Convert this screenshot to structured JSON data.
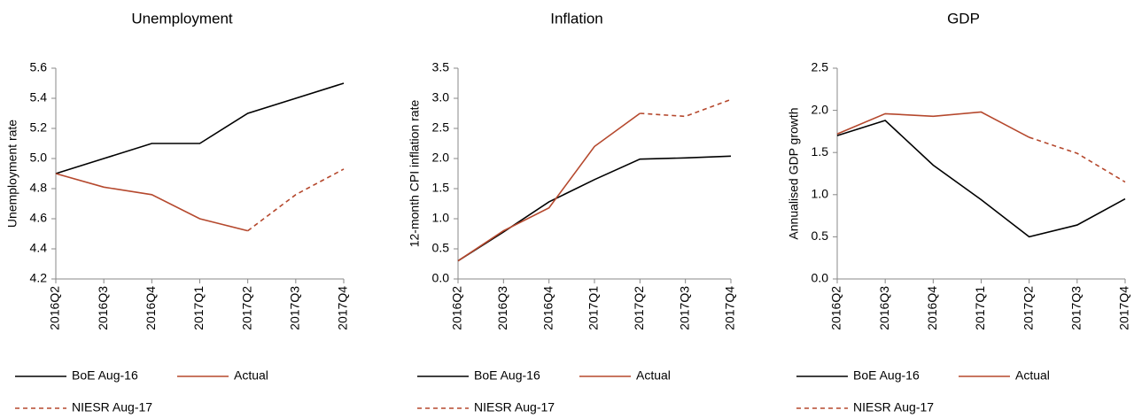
{
  "chart_data": [
    {
      "type": "line",
      "title": "Unemployment",
      "y_label": "Unemployment rate",
      "categories": [
        "2016Q2",
        "2016Q3",
        "2016Q4",
        "2017Q1",
        "2017Q2",
        "2017Q3",
        "2017Q4"
      ],
      "ylim": [
        4.2,
        5.6
      ],
      "yticks": [
        4.2,
        4.4,
        4.6,
        4.8,
        {
          "value": 5.0,
          "label": "5.0"
        },
        5.2,
        5.4,
        5.6
      ],
      "series": [
        {
          "name": "BoE Aug-16",
          "color": "#000000",
          "dashed": false,
          "values": [
            4.9,
            5.0,
            5.1,
            5.1,
            5.3,
            5.4,
            5.5
          ]
        },
        {
          "name": "Actual",
          "color": "#b5482d",
          "dashed": false,
          "values": [
            4.9,
            4.81,
            4.76,
            4.6,
            4.52,
            null,
            null
          ]
        },
        {
          "name": "NIESR Aug-17",
          "color": "#b5482d",
          "dashed": true,
          "values": [
            null,
            null,
            null,
            null,
            4.52,
            4.76,
            4.93
          ]
        }
      ]
    },
    {
      "type": "line",
      "title": "Inflation",
      "y_label": "12-month CPI inflation rate",
      "categories": [
        "2016Q2",
        "2016Q3",
        "2016Q4",
        "2017Q1",
        "2017Q2",
        "2017Q3",
        "2017Q4"
      ],
      "ylim": [
        0,
        3.5
      ],
      "yticks": [
        {
          "value": 0,
          "label": "0.0"
        },
        0.5,
        {
          "value": 1,
          "label": "1.0"
        },
        1.5,
        {
          "value": 2,
          "label": "2.0"
        },
        2.5,
        {
          "value": 3,
          "label": "3.0"
        },
        3.5
      ],
      "series": [
        {
          "name": "BoE Aug-16",
          "color": "#000000",
          "dashed": false,
          "values": [
            0.3,
            0.78,
            1.28,
            1.65,
            1.99,
            2.01,
            2.04
          ]
        },
        {
          "name": "Actual",
          "color": "#b5482d",
          "dashed": false,
          "values": [
            0.3,
            0.8,
            1.18,
            2.2,
            2.75,
            null,
            null
          ]
        },
        {
          "name": "NIESR Aug-17",
          "color": "#b5482d",
          "dashed": true,
          "values": [
            null,
            null,
            null,
            null,
            2.75,
            2.7,
            2.98
          ]
        }
      ]
    },
    {
      "type": "line",
      "title": "GDP",
      "y_label": "Annualised GDP growth",
      "categories": [
        "2016Q2",
        "2016Q3",
        "2016Q4",
        "2017Q1",
        "2017Q2",
        "2017Q3",
        "2017Q4"
      ],
      "ylim": [
        0,
        2.5
      ],
      "yticks": [
        {
          "value": 0,
          "label": "0.0"
        },
        0.5,
        {
          "value": 1,
          "label": "1.0"
        },
        1.5,
        {
          "value": 2,
          "label": "2.0"
        },
        2.5
      ],
      "series": [
        {
          "name": "BoE Aug-16",
          "color": "#000000",
          "dashed": false,
          "values": [
            1.7,
            1.88,
            1.35,
            0.94,
            0.5,
            0.64,
            0.95
          ]
        },
        {
          "name": "Actual",
          "color": "#b5482d",
          "dashed": false,
          "values": [
            1.72,
            1.96,
            1.93,
            1.98,
            1.68,
            null,
            null
          ]
        },
        {
          "name": "NIESR Aug-17",
          "color": "#b5482d",
          "dashed": true,
          "values": [
            null,
            null,
            null,
            null,
            1.68,
            1.49,
            1.15
          ]
        }
      ]
    }
  ]
}
